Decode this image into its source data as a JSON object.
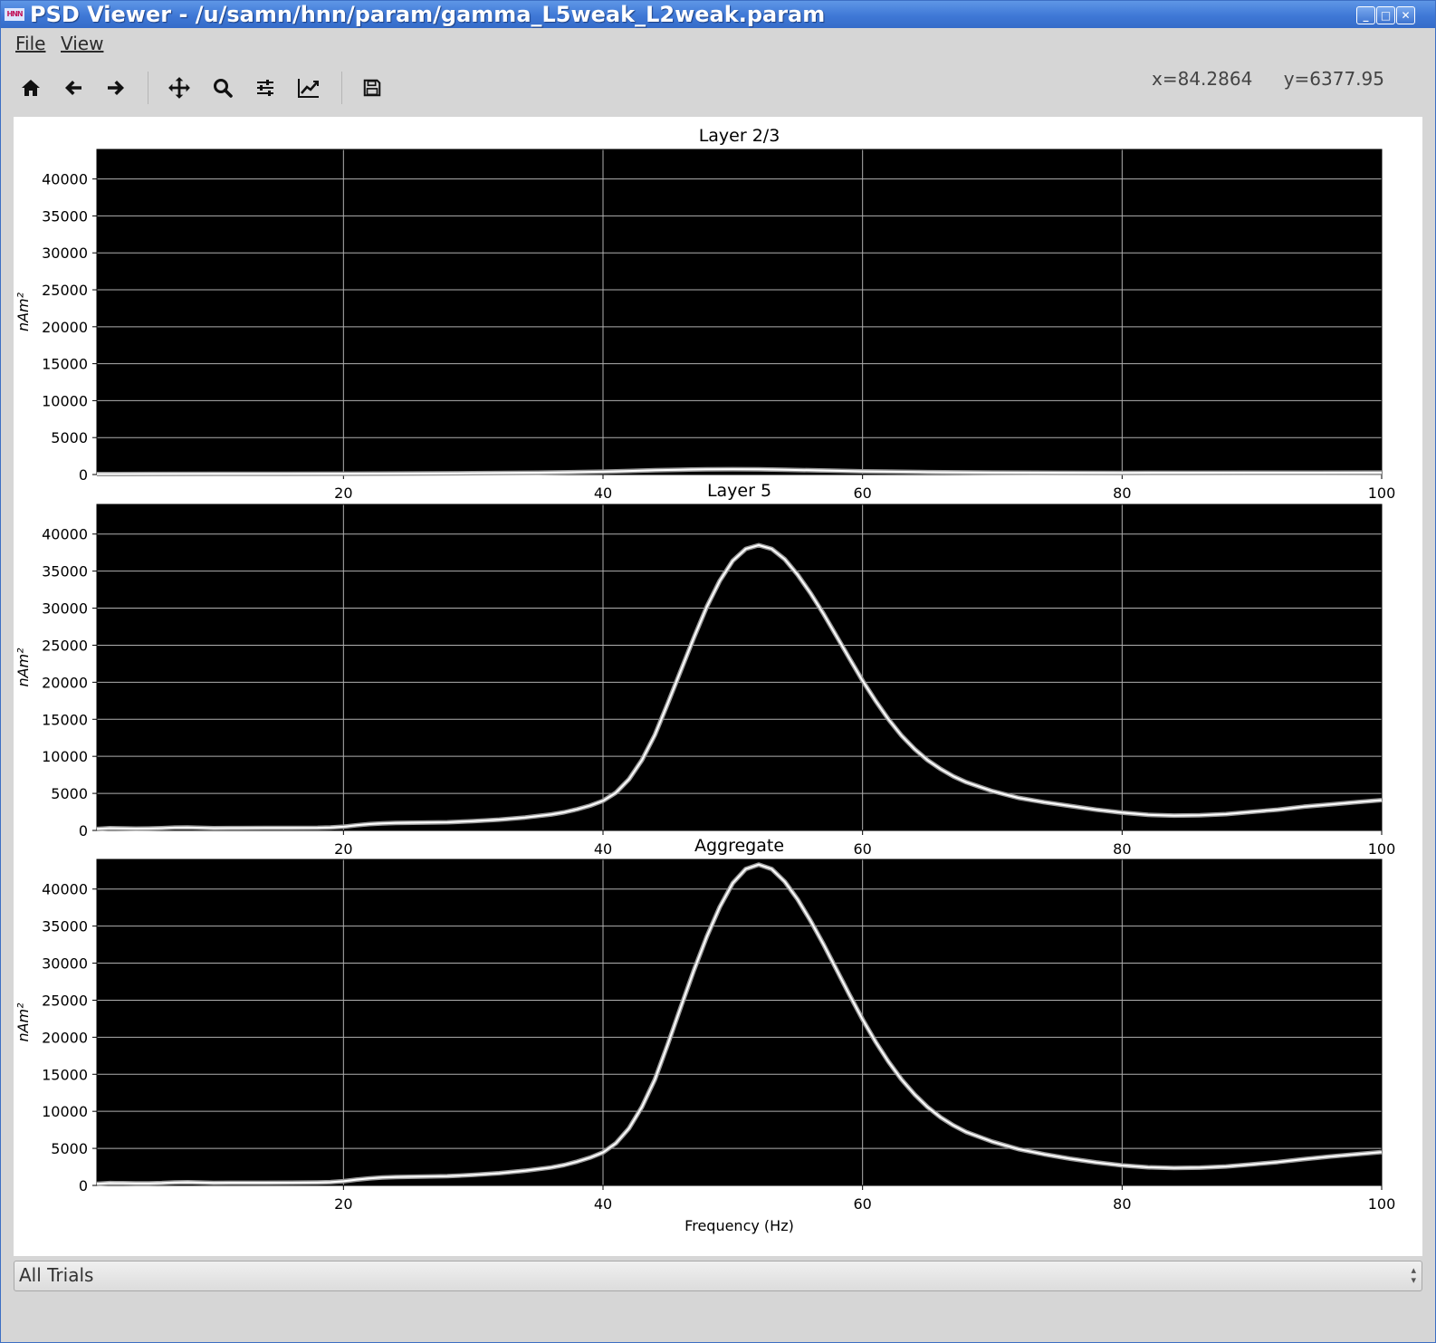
{
  "window": {
    "logo": "HNN",
    "title": "PSD Viewer - /u/samn/hnn/param/gamma_L5weak_L2weak.param",
    "controls": {
      "minimize": "_",
      "maximize": "□",
      "close": "✕"
    }
  },
  "menu": {
    "items": [
      "File",
      "View"
    ]
  },
  "toolbar": {
    "tools": [
      {
        "name": "home",
        "icon": "home-icon"
      },
      {
        "name": "back",
        "icon": "arrow-left-icon"
      },
      {
        "name": "forward",
        "icon": "arrow-right-icon"
      },
      {
        "name": "pan",
        "icon": "move-icon"
      },
      {
        "name": "zoom",
        "icon": "magnifier-icon"
      },
      {
        "name": "subplots",
        "icon": "sliders-icon"
      },
      {
        "name": "customize",
        "icon": "line-chart-icon"
      },
      {
        "name": "save",
        "icon": "floppy-disk-icon"
      }
    ],
    "coords": {
      "x": "x=84.2864",
      "y": "y=6377.95"
    }
  },
  "chart_data": [
    {
      "type": "line",
      "title": "Layer 2/3",
      "ylabel": "nAm²",
      "xlabel": "",
      "xlim": [
        1,
        100
      ],
      "ylim": [
        0,
        44000
      ],
      "xticks": [
        20,
        40,
        60,
        80,
        100
      ],
      "yticks": [
        0,
        5000,
        10000,
        15000,
        20000,
        25000,
        30000,
        35000,
        40000
      ],
      "grid": true,
      "background": "#000000",
      "line_color": "#ffffff",
      "series": [
        {
          "x": [
            1,
            5,
            10,
            15,
            20,
            25,
            30,
            35,
            40,
            42,
            44,
            46,
            48,
            50,
            52,
            54,
            56,
            58,
            60,
            65,
            70,
            75,
            80,
            85,
            90,
            95,
            100
          ],
          "values": [
            60,
            70,
            80,
            90,
            110,
            140,
            180,
            250,
            380,
            480,
            580,
            650,
            700,
            720,
            700,
            650,
            580,
            500,
            430,
            320,
            260,
            230,
            220,
            230,
            240,
            250,
            260
          ]
        }
      ]
    },
    {
      "type": "line",
      "title": "Layer 5",
      "ylabel": "nAm²",
      "xlabel": "",
      "xlim": [
        1,
        100
      ],
      "ylim": [
        0,
        44000
      ],
      "xticks": [
        20,
        40,
        60,
        80,
        100
      ],
      "yticks": [
        0,
        5000,
        10000,
        15000,
        20000,
        25000,
        30000,
        35000,
        40000
      ],
      "grid": true,
      "background": "#000000",
      "line_color": "#ffffff",
      "series": [
        {
          "x": [
            1,
            2,
            3,
            4,
            5,
            6,
            7,
            8,
            9,
            10,
            12,
            14,
            16,
            18,
            19,
            20,
            21,
            22,
            23,
            24,
            26,
            28,
            30,
            32,
            34,
            36,
            37,
            38,
            39,
            40,
            41,
            42,
            43,
            44,
            45,
            46,
            47,
            48,
            49,
            50,
            51,
            52,
            53,
            54,
            55,
            56,
            57,
            58,
            59,
            60,
            61,
            62,
            63,
            64,
            65,
            66,
            67,
            68,
            70,
            72,
            74,
            76,
            78,
            80,
            82,
            84,
            86,
            88,
            90,
            92,
            94,
            96,
            98,
            100
          ],
          "values": [
            200,
            300,
            280,
            250,
            260,
            300,
            380,
            400,
            350,
            300,
            320,
            330,
            340,
            360,
            400,
            500,
            700,
            850,
            950,
            1000,
            1050,
            1100,
            1250,
            1450,
            1750,
            2150,
            2450,
            2850,
            3350,
            4000,
            5100,
            6900,
            9500,
            12900,
            17200,
            21600,
            26000,
            30200,
            33700,
            36400,
            38000,
            38500,
            38000,
            36600,
            34500,
            32000,
            29200,
            26200,
            23200,
            20200,
            17500,
            15000,
            12800,
            11000,
            9500,
            8300,
            7300,
            6500,
            5300,
            4400,
            3800,
            3300,
            2800,
            2400,
            2100,
            2000,
            2050,
            2200,
            2500,
            2800,
            3200,
            3500,
            3800,
            4100
          ]
        }
      ]
    },
    {
      "type": "line",
      "title": "Aggregate",
      "ylabel": "nAm²",
      "xlabel": "Frequency (Hz)",
      "xlim": [
        1,
        100
      ],
      "ylim": [
        0,
        44000
      ],
      "xticks": [
        20,
        40,
        60,
        80,
        100
      ],
      "yticks": [
        0,
        5000,
        10000,
        15000,
        20000,
        25000,
        30000,
        35000,
        40000
      ],
      "grid": true,
      "background": "#000000",
      "line_color": "#ffffff",
      "series": [
        {
          "x": [
            1,
            2,
            3,
            4,
            5,
            6,
            7,
            8,
            9,
            10,
            12,
            14,
            16,
            18,
            19,
            20,
            21,
            22,
            23,
            24,
            26,
            28,
            30,
            32,
            34,
            36,
            37,
            38,
            39,
            40,
            41,
            42,
            43,
            44,
            45,
            46,
            47,
            48,
            49,
            50,
            51,
            52,
            53,
            54,
            55,
            56,
            57,
            58,
            59,
            60,
            61,
            62,
            63,
            64,
            65,
            66,
            67,
            68,
            70,
            72,
            74,
            76,
            78,
            80,
            82,
            84,
            86,
            88,
            90,
            92,
            94,
            96,
            98,
            100
          ],
          "values": [
            220,
            320,
            300,
            270,
            280,
            320,
            400,
            430,
            380,
            330,
            350,
            360,
            370,
            390,
            440,
            560,
            780,
            950,
            1060,
            1120,
            1180,
            1250,
            1420,
            1650,
            1980,
            2420,
            2750,
            3200,
            3750,
            4450,
            5700,
            7700,
            10600,
            14300,
            19100,
            24100,
            29000,
            33600,
            37600,
            40800,
            42700,
            43300,
            42700,
            41000,
            38600,
            35700,
            32500,
            29100,
            25700,
            22400,
            19400,
            16700,
            14300,
            12300,
            10600,
            9200,
            8100,
            7200,
            5900,
            4900,
            4200,
            3600,
            3100,
            2700,
            2450,
            2350,
            2400,
            2550,
            2850,
            3150,
            3550,
            3900,
            4200,
            4500
          ]
        }
      ]
    }
  ],
  "trial_selector": {
    "selected": "All Trials"
  }
}
